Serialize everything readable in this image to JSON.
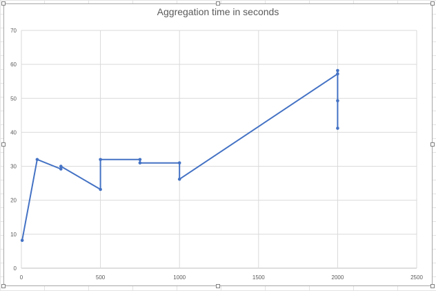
{
  "chart_data": {
    "type": "line",
    "title": "Aggregation time in seconds",
    "xlabel": "",
    "ylabel": "",
    "xlim": [
      0,
      2500
    ],
    "ylim": [
      0,
      70
    ],
    "x_ticks": [
      0,
      500,
      1000,
      1500,
      2000,
      2500
    ],
    "y_ticks": [
      0,
      10,
      20,
      30,
      40,
      50,
      60,
      70
    ],
    "grid": true,
    "legend": "none",
    "series": [
      {
        "color": "#4472c4",
        "points": [
          {
            "x": 5,
            "y": 8.2
          },
          {
            "x": 100,
            "y": 32
          },
          {
            "x": 250,
            "y": 29.2
          },
          {
            "x": 250,
            "y": 30
          },
          {
            "x": 500,
            "y": 23.2
          },
          {
            "x": 500,
            "y": 32
          },
          {
            "x": 750,
            "y": 32
          },
          {
            "x": 750,
            "y": 31
          },
          {
            "x": 1000,
            "y": 31
          },
          {
            "x": 1000,
            "y": 26.2
          },
          {
            "x": 2000,
            "y": 57.2
          },
          {
            "x": 2000,
            "y": 58.2
          },
          {
            "x": 2000,
            "y": 49.3
          },
          {
            "x": 2000,
            "y": 41.2
          }
        ]
      }
    ]
  }
}
